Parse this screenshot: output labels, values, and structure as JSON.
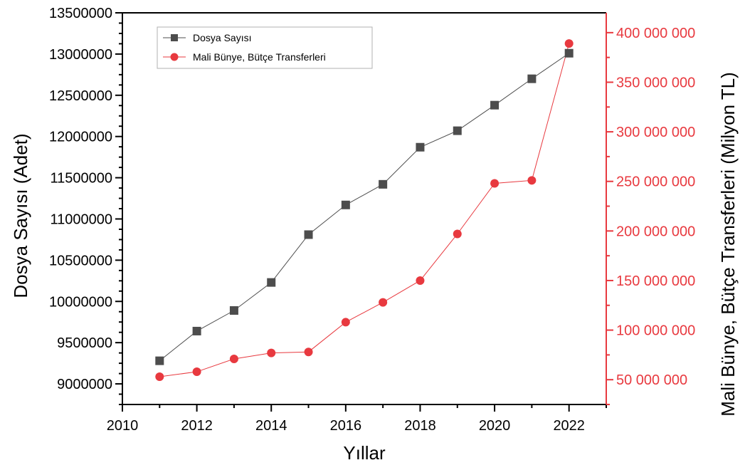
{
  "colors": {
    "left_series": "#4d4d4d",
    "right_series": "#e8393f",
    "right_axis": "#e8393f",
    "axis": "#000000",
    "legend_border": "#b0b0b0"
  },
  "chart_data": {
    "type": "line",
    "xlabel": "Yıllar",
    "ylabel": "Dosya Sayısı (Adet)",
    "y2label": "Mali Bünye, Bütçe Transferleri (Milyon TL)",
    "xlim": [
      2010,
      2023
    ],
    "xticks": [
      "2010",
      "2012",
      "2014",
      "2016",
      "2018",
      "2020",
      "2022"
    ],
    "ylim": [
      8750000,
      13500000
    ],
    "yticks": [
      "9000000",
      "9500000",
      "10000000",
      "10500000",
      "11000000",
      "11500000",
      "12000000",
      "12500000",
      "13000000",
      "13500000"
    ],
    "y2lim": [
      25000000,
      420000000
    ],
    "y2ticks": [
      "50 000 000",
      "100 000 000",
      "150 000 000",
      "200 000 000",
      "250 000 000",
      "300 000 000",
      "350 000 000",
      "400 000 000"
    ],
    "legend_position": "top-left",
    "grid": false,
    "x": [
      2011,
      2012,
      2013,
      2014,
      2015,
      2016,
      2017,
      2018,
      2019,
      2020,
      2021,
      2022
    ],
    "series": [
      {
        "name": "Dosya Sayısı",
        "axis": "left",
        "marker": "square",
        "values": [
          9280000,
          9640000,
          9890000,
          10230000,
          10810000,
          11170000,
          11420000,
          11870000,
          12070000,
          12380000,
          12700000,
          13010000
        ]
      },
      {
        "name": "Mali Bünye, Bütçe Transferleri",
        "axis": "right",
        "marker": "circle",
        "values": [
          53000000,
          58000000,
          71000000,
          77000000,
          78000000,
          108000000,
          128000000,
          150000000,
          197000000,
          248000000,
          251000000,
          389000000
        ]
      }
    ]
  }
}
